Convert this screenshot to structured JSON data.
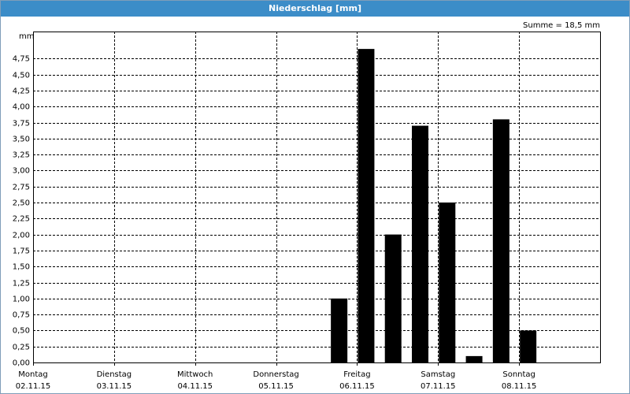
{
  "chart_data": {
    "type": "bar",
    "title": "Niederschlag [mm]",
    "y_unit": "mm",
    "annotation": "Summe = 18,5 mm",
    "color": "#000000",
    "ylim": [
      0,
      5
    ],
    "yticks": [
      {
        "value": 0,
        "label": "0,00"
      },
      {
        "value": 0.25,
        "label": "0,25"
      },
      {
        "value": 0.5,
        "label": "0,50"
      },
      {
        "value": 0.75,
        "label": "0,75"
      },
      {
        "value": 1,
        "label": "1,00"
      },
      {
        "value": 1.25,
        "label": "1,25"
      },
      {
        "value": 1.5,
        "label": "1,50"
      },
      {
        "value": 1.75,
        "label": "1,75"
      },
      {
        "value": 2,
        "label": "2,00"
      },
      {
        "value": 2.25,
        "label": "2,25"
      },
      {
        "value": 2.5,
        "label": "2,50"
      },
      {
        "value": 2.75,
        "label": "2,75"
      },
      {
        "value": 3,
        "label": "3,00"
      },
      {
        "value": 3.25,
        "label": "3,25"
      },
      {
        "value": 3.5,
        "label": "3,50"
      },
      {
        "value": 3.75,
        "label": "3,75"
      },
      {
        "value": 4,
        "label": "4,00"
      },
      {
        "value": 4.25,
        "label": "4,25"
      },
      {
        "value": 4.5,
        "label": "4,50"
      },
      {
        "value": 4.75,
        "label": "4,75"
      }
    ],
    "grid": true,
    "days": [
      {
        "name": "Montag",
        "date": "02.11.15",
        "values": [
          0,
          0,
          0
        ]
      },
      {
        "name": "Dienstag",
        "date": "03.11.15",
        "values": [
          0,
          0,
          0
        ]
      },
      {
        "name": "Mittwoch",
        "date": "04.11.15",
        "values": [
          0,
          0,
          0
        ]
      },
      {
        "name": "Donnerstag",
        "date": "05.11.15",
        "values": [
          0,
          0,
          1.0
        ]
      },
      {
        "name": "Freitag",
        "date": "06.11.15",
        "values": [
          4.9,
          2.0,
          3.7
        ]
      },
      {
        "name": "Samstag",
        "date": "07.11.15",
        "values": [
          2.5,
          0.1,
          3.8
        ]
      },
      {
        "name": "Sonntag",
        "date": "08.11.15",
        "values": [
          0.5,
          0,
          0
        ]
      }
    ]
  }
}
